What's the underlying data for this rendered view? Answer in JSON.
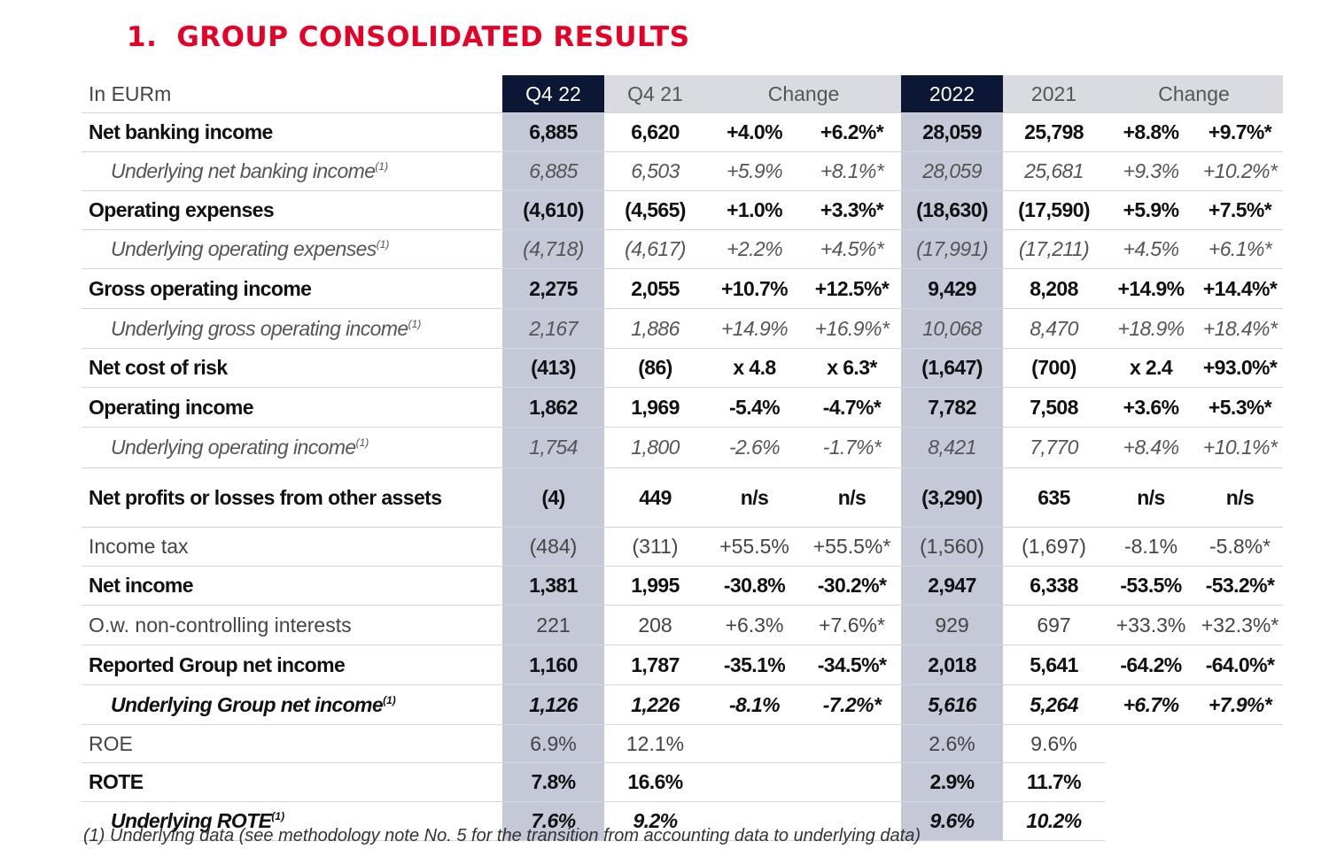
{
  "title": {
    "number": "1.",
    "text": "GROUP CONSOLIDATED RESULTS"
  },
  "table": {
    "header": [
      "In EURm",
      "Q4 22",
      "Q4 21",
      "Change",
      "2022",
      "2021",
      "Change"
    ],
    "rows": [
      {
        "label": "Net banking income",
        "note": "",
        "cells": [
          "6,885",
          "6,620",
          "+4.0%",
          "+6.2%*",
          "28,059",
          "25,798",
          "+8.8%",
          "+9.7%*"
        ]
      },
      {
        "label": "Underlying net banking income",
        "note": "(1)",
        "cells": [
          "6,885",
          "6,503",
          "+5.9%",
          "+8.1%*",
          "28,059",
          "25,681",
          "+9.3%",
          "+10.2%*"
        ]
      },
      {
        "label": "Operating expenses",
        "note": "",
        "cells": [
          "(4,610)",
          "(4,565)",
          "+1.0%",
          "+3.3%*",
          "(18,630)",
          "(17,590)",
          "+5.9%",
          "+7.5%*"
        ]
      },
      {
        "label": "Underlying operating expenses",
        "note": "(1)",
        "cells": [
          "(4,718)",
          "(4,617)",
          "+2.2%",
          "+4.5%*",
          "(17,991)",
          "(17,211)",
          "+4.5%",
          "+6.1%*"
        ]
      },
      {
        "label": "Gross operating income",
        "note": "",
        "cells": [
          "2,275",
          "2,055",
          "+10.7%",
          "+12.5%*",
          "9,429",
          "8,208",
          "+14.9%",
          "+14.4%*"
        ]
      },
      {
        "label": "Underlying gross operating income",
        "note": "(1)",
        "cells": [
          "2,167",
          "1,886",
          "+14.9%",
          "+16.9%*",
          "10,068",
          "8,470",
          "+18.9%",
          "+18.4%*"
        ]
      },
      {
        "label": "Net cost of risk",
        "note": "",
        "cells": [
          "(413)",
          "(86)",
          "x 4.8",
          "x 6.3*",
          "(1,647)",
          "(700)",
          "x 2.4",
          "+93.0%*"
        ]
      },
      {
        "label": "Operating income",
        "note": "",
        "cells": [
          "1,862",
          "1,969",
          "-5.4%",
          "-4.7%*",
          "7,782",
          "7,508",
          "+3.6%",
          "+5.3%*"
        ]
      },
      {
        "label": "Underlying operating income",
        "note": "(1)",
        "cells": [
          "1,754",
          "1,800",
          "-2.6%",
          "-1.7%*",
          "8,421",
          "7,770",
          "+8.4%",
          "+10.1%*"
        ]
      },
      {
        "label": "Net profits or losses from other assets",
        "note": "",
        "cells": [
          "(4)",
          "449",
          "n/s",
          "n/s",
          "(3,290)",
          "635",
          "n/s",
          "n/s"
        ]
      },
      {
        "label": "Income tax",
        "note": "",
        "cells": [
          "(484)",
          "(311)",
          "+55.5%",
          "+55.5%*",
          "(1,560)",
          "(1,697)",
          "-8.1%",
          "-5.8%*"
        ]
      },
      {
        "label": "Net income",
        "note": "",
        "cells": [
          "1,381",
          "1,995",
          "-30.8%",
          "-30.2%*",
          "2,947",
          "6,338",
          "-53.5%",
          "-53.2%*"
        ]
      },
      {
        "label": "O.w. non-controlling interests",
        "note": "",
        "cells": [
          "221",
          "208",
          "+6.3%",
          "+7.6%*",
          "929",
          "697",
          "+33.3%",
          "+32.3%*"
        ]
      },
      {
        "label": "Reported Group net income",
        "note": "",
        "cells": [
          "1,160",
          "1,787",
          "-35.1%",
          "-34.5%*",
          "2,018",
          "5,641",
          "-64.2%",
          "-64.0%*"
        ]
      },
      {
        "label": "Underlying Group net income",
        "note": "(1)",
        "cells": [
          "1,126",
          "1,226",
          "-8.1%",
          "-7.2%*",
          "5,616",
          "5,264",
          "+6.7%",
          "+7.9%*"
        ]
      },
      {
        "label": "ROE",
        "note": "",
        "cells": [
          "6.9%",
          "12.1%",
          "",
          "",
          "2.6%",
          "9.6%",
          "",
          ""
        ]
      },
      {
        "label": "ROTE",
        "note": "",
        "cells": [
          "7.8%",
          "16.6%",
          "",
          "",
          "2.9%",
          "11.7%",
          "",
          ""
        ]
      },
      {
        "label": "Underlying ROTE",
        "note": "(1)",
        "cells": [
          "7.6%",
          "9.2%",
          "",
          "",
          "9.6%",
          "10.2%",
          "",
          ""
        ]
      }
    ]
  },
  "footnote": "(1) Underlying data (see methodology note No. 5 for the transition from accounting data to underlying data)"
}
